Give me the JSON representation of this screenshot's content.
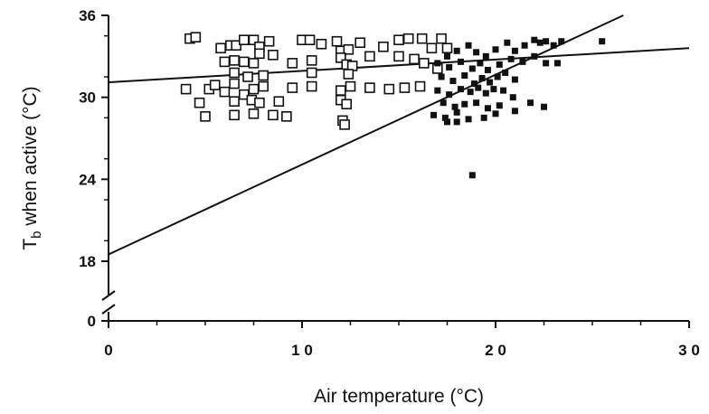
{
  "chart_data": {
    "type": "scatter",
    "title": "",
    "xlabel": "Air temperature (°C)",
    "ylabel": "T",
    "ylabel_sub": "b",
    "ylabel_rest": " when active (°C)",
    "xlim": [
      0,
      30
    ],
    "ylim": [
      0,
      36
    ],
    "axis_break": true,
    "x_ticks": [
      0,
      10,
      20,
      30
    ],
    "x_tick_labels": [
      "0",
      "1 0",
      "2 0",
      "3 0"
    ],
    "y_ticks": [
      0,
      18,
      24,
      30,
      36
    ],
    "y_tick_labels": [
      "0",
      "18",
      "24",
      "30",
      "36"
    ],
    "grid": false,
    "legend": "none",
    "series": [
      {
        "marker": "open-square",
        "points": [
          [
            4.2,
            34.3
          ],
          [
            4.5,
            34.4
          ],
          [
            5.8,
            33.6
          ],
          [
            6.3,
            33.8
          ],
          [
            6.6,
            33.8
          ],
          [
            7.0,
            34.2
          ],
          [
            7.5,
            34.2
          ],
          [
            7.8,
            33.7
          ],
          [
            8.3,
            34.1
          ],
          [
            10.0,
            34.2
          ],
          [
            10.4,
            34.2
          ],
          [
            11.0,
            33.9
          ],
          [
            11.8,
            34.1
          ],
          [
            12.0,
            33.4
          ],
          [
            12.4,
            33.5
          ],
          [
            13.0,
            34.0
          ],
          [
            14.2,
            33.7
          ],
          [
            15.0,
            34.2
          ],
          [
            15.5,
            34.3
          ],
          [
            16.2,
            34.3
          ],
          [
            16.7,
            33.6
          ],
          [
            17.2,
            34.3
          ],
          [
            17.5,
            33.6
          ],
          [
            6.0,
            32.6
          ],
          [
            6.5,
            32.7
          ],
          [
            7.0,
            32.6
          ],
          [
            7.5,
            32.5
          ],
          [
            7.8,
            33.2
          ],
          [
            8.5,
            33.1
          ],
          [
            9.5,
            32.5
          ],
          [
            10.5,
            32.7
          ],
          [
            12.0,
            32.9
          ],
          [
            12.3,
            32.4
          ],
          [
            12.6,
            32.3
          ],
          [
            13.5,
            33.0
          ],
          [
            15.0,
            33.0
          ],
          [
            15.8,
            32.8
          ],
          [
            16.3,
            32.5
          ],
          [
            17.0,
            32.1
          ],
          [
            6.5,
            31.8
          ],
          [
            7.2,
            31.5
          ],
          [
            8.0,
            31.6
          ],
          [
            10.5,
            31.8
          ],
          [
            12.4,
            31.7
          ],
          [
            4.0,
            30.6
          ],
          [
            5.2,
            30.6
          ],
          [
            5.5,
            30.9
          ],
          [
            6.0,
            30.4
          ],
          [
            6.5,
            31.0
          ],
          [
            7.0,
            30.2
          ],
          [
            7.5,
            30.6
          ],
          [
            8.0,
            30.8
          ],
          [
            9.5,
            30.7
          ],
          [
            10.5,
            30.8
          ],
          [
            12.0,
            30.5
          ],
          [
            12.5,
            30.8
          ],
          [
            13.5,
            30.7
          ],
          [
            14.5,
            30.6
          ],
          [
            15.3,
            30.7
          ],
          [
            16.1,
            30.8
          ],
          [
            4.7,
            29.6
          ],
          [
            6.5,
            29.7
          ],
          [
            7.4,
            29.8
          ],
          [
            7.8,
            29.6
          ],
          [
            8.8,
            29.7
          ],
          [
            12.0,
            29.8
          ],
          [
            12.3,
            29.5
          ],
          [
            5.0,
            28.6
          ],
          [
            6.5,
            28.7
          ],
          [
            7.5,
            28.8
          ],
          [
            8.5,
            28.7
          ],
          [
            9.2,
            28.6
          ],
          [
            12.1,
            28.3
          ],
          [
            12.2,
            28.0
          ]
        ]
      },
      {
        "marker": "filled-square",
        "points": [
          [
            17.5,
            33.0
          ],
          [
            18.0,
            33.4
          ],
          [
            18.6,
            33.8
          ],
          [
            19.0,
            33.3
          ],
          [
            19.5,
            33.0
          ],
          [
            20.0,
            33.5
          ],
          [
            20.6,
            34.0
          ],
          [
            21.0,
            33.4
          ],
          [
            21.5,
            33.8
          ],
          [
            22.0,
            34.2
          ],
          [
            22.3,
            34.0
          ],
          [
            22.6,
            34.1
          ],
          [
            23.0,
            33.8
          ],
          [
            23.4,
            34.1
          ],
          [
            25.5,
            34.1
          ],
          [
            17.0,
            32.5
          ],
          [
            17.6,
            32.2
          ],
          [
            18.2,
            32.6
          ],
          [
            18.8,
            32.1
          ],
          [
            19.2,
            32.5
          ],
          [
            19.6,
            32.0
          ],
          [
            20.2,
            32.4
          ],
          [
            20.8,
            32.8
          ],
          [
            21.4,
            32.6
          ],
          [
            22.0,
            33.0
          ],
          [
            22.6,
            32.5
          ],
          [
            23.2,
            32.5
          ],
          [
            17.2,
            31.5
          ],
          [
            17.8,
            31.2
          ],
          [
            18.4,
            31.6
          ],
          [
            18.9,
            31.0
          ],
          [
            19.3,
            31.4
          ],
          [
            19.7,
            31.1
          ],
          [
            20.1,
            31.5
          ],
          [
            20.5,
            31.8
          ],
          [
            21.0,
            31.3
          ],
          [
            17.0,
            30.5
          ],
          [
            17.6,
            30.2
          ],
          [
            18.2,
            30.6
          ],
          [
            18.7,
            30.4
          ],
          [
            19.1,
            30.7
          ],
          [
            19.5,
            30.3
          ],
          [
            19.9,
            30.6
          ],
          [
            20.4,
            30.5
          ],
          [
            20.9,
            30.0
          ],
          [
            17.3,
            29.6
          ],
          [
            17.9,
            29.3
          ],
          [
            18.4,
            29.5
          ],
          [
            19.0,
            29.6
          ],
          [
            19.6,
            29.2
          ],
          [
            20.2,
            29.4
          ],
          [
            21.0,
            29.0
          ],
          [
            21.8,
            29.6
          ],
          [
            22.5,
            29.3
          ],
          [
            16.8,
            28.7
          ],
          [
            17.4,
            28.5
          ],
          [
            18.0,
            28.9
          ],
          [
            18.6,
            28.4
          ],
          [
            19.4,
            28.5
          ],
          [
            20.0,
            28.8
          ],
          [
            17.5,
            28.2
          ],
          [
            18.0,
            28.2
          ],
          [
            18.8,
            24.3
          ]
        ]
      }
    ],
    "lines": [
      {
        "x": [
          0,
          30
        ],
        "y": [
          31.1,
          33.6
        ]
      },
      {
        "x": [
          0,
          26.6
        ],
        "y": [
          18.5,
          36.0
        ]
      }
    ]
  }
}
